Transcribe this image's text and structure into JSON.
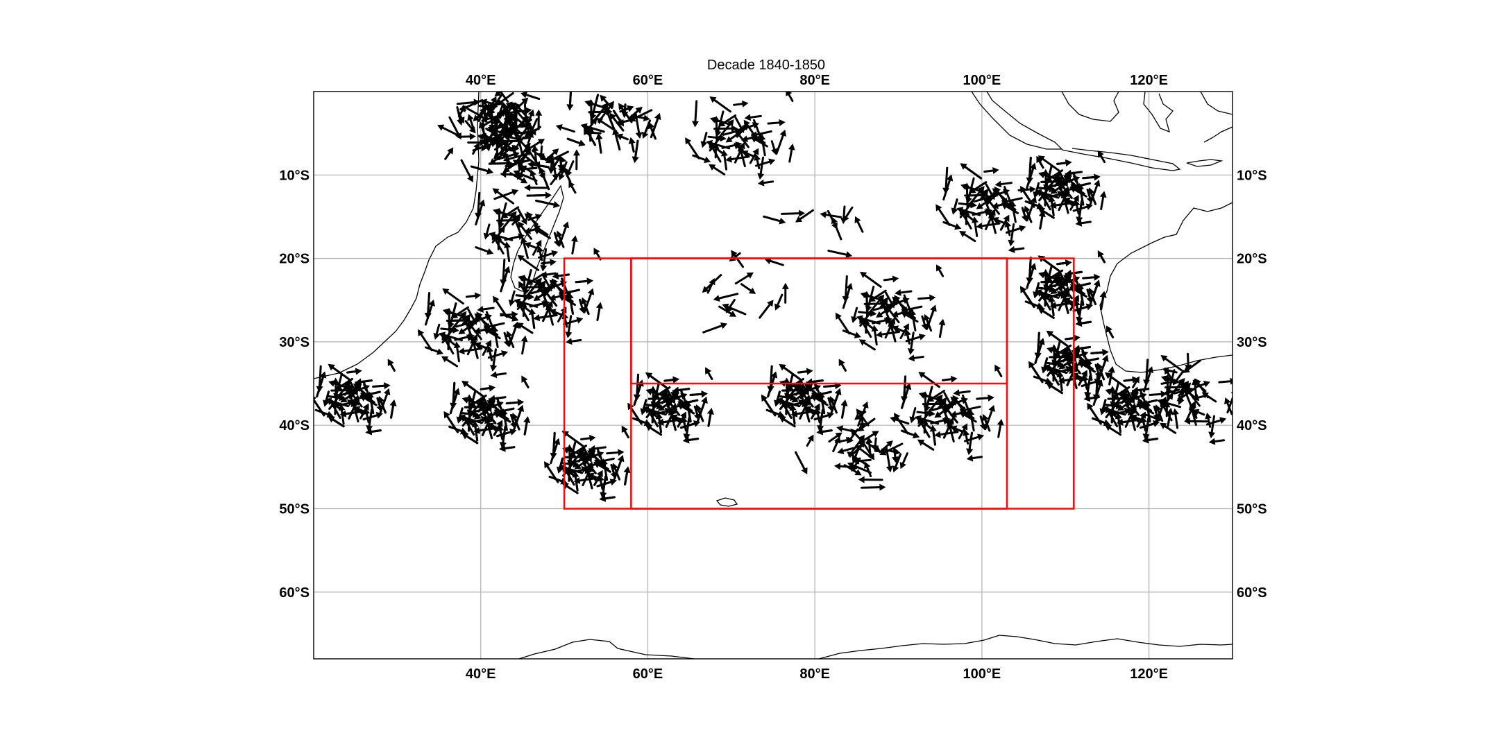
{
  "title": "Decade 1840-1850",
  "map": {
    "lon_range": [
      20,
      130
    ],
    "lat_range": [
      -68,
      0
    ],
    "lon_ticks": [
      40,
      60,
      80,
      100,
      120
    ],
    "lat_ticks": [
      -10,
      -20,
      -30,
      -40,
      -50,
      -60
    ],
    "lon_tick_labels": [
      "40°E",
      "60°E",
      "80°E",
      "100°E",
      "120°E"
    ],
    "lat_tick_labels": [
      "10°S",
      "20°S",
      "30°S",
      "40°S",
      "50°S",
      "60°S"
    ],
    "grid": true,
    "colors": {
      "frame": "#000000",
      "grid": "#b0b0b0",
      "coastline": "#000000",
      "vectors": "#000000",
      "region_boxes": "#ee1111"
    }
  },
  "region_boxes": [
    {
      "lon_min": 50,
      "lon_max": 103,
      "lat_min": -50,
      "lat_max": -20
    },
    {
      "lon_min": 58,
      "lon_max": 111,
      "lat_min": -50,
      "lat_max": -20
    },
    {
      "lon_min": 58,
      "lon_max": 103,
      "lat_min": -35,
      "lat_max": -20
    }
  ],
  "vector_field": {
    "description_visible": "dense black wind/ship-track arrows",
    "clusters": [
      {
        "lon": 42,
        "lat": -4,
        "count": 90
      },
      {
        "lon": 45,
        "lat": -9,
        "count": 70
      },
      {
        "lon": 55,
        "lat": -4,
        "count": 70
      },
      {
        "lon": 70,
        "lat": -6,
        "count": 50
      },
      {
        "lon": 44,
        "lat": -17,
        "count": 40
      },
      {
        "lon": 47,
        "lat": -25,
        "count": 80
      },
      {
        "lon": 38,
        "lat": -29,
        "count": 70
      },
      {
        "lon": 24,
        "lat": -37,
        "count": 90
      },
      {
        "lon": 40,
        "lat": -39,
        "count": 110
      },
      {
        "lon": 52,
        "lat": -45,
        "count": 90
      },
      {
        "lon": 62,
        "lat": -38,
        "count": 120
      },
      {
        "lon": 78,
        "lat": -37,
        "count": 110
      },
      {
        "lon": 95,
        "lat": -39,
        "count": 80
      },
      {
        "lon": 88,
        "lat": -27,
        "count": 60
      },
      {
        "lon": 100,
        "lat": -14,
        "count": 70
      },
      {
        "lon": 109,
        "lat": -12,
        "count": 90
      },
      {
        "lon": 109,
        "lat": -24,
        "count": 140
      },
      {
        "lon": 110,
        "lat": -33,
        "count": 120
      },
      {
        "lon": 117,
        "lat": -38,
        "count": 100
      },
      {
        "lon": 124,
        "lat": -37,
        "count": 50
      },
      {
        "lon": 70,
        "lat": -25,
        "count": 15
      },
      {
        "lon": 80,
        "lat": -15,
        "count": 10
      },
      {
        "lon": 85,
        "lat": -44,
        "count": 40
      }
    ]
  }
}
